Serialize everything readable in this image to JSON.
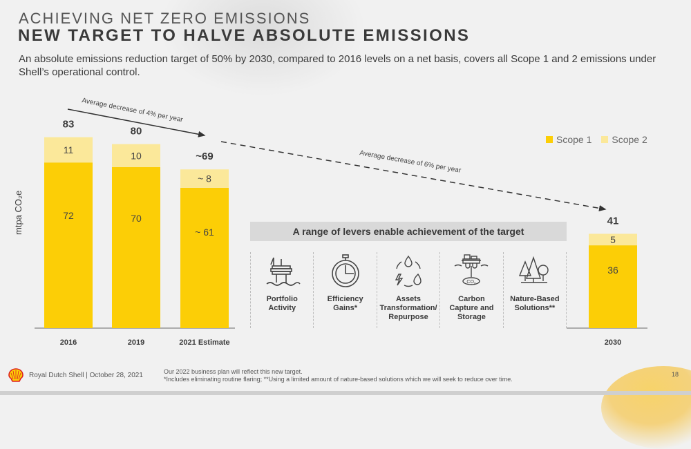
{
  "header": {
    "eyebrow": "ACHIEVING NET ZERO EMISSIONS",
    "title": "NEW TARGET TO HALVE ABSOLUTE EMISSIONS",
    "subtitle": "An absolute emissions reduction target of 50% by 2030, compared to 2016 levels on a net basis, covers all Scope 1 and 2 emissions under Shell’s operational control."
  },
  "colors": {
    "scope1": "#fcce06",
    "scope2": "#fbe89a",
    "text": "#3a3a3a"
  },
  "chart_data": {
    "type": "bar",
    "stacked": true,
    "title": "NEW TARGET TO HALVE ABSOLUTE EMISSIONS",
    "xlabel": "",
    "ylabel": "mtpa CO₂e",
    "ylim": [
      0,
      90
    ],
    "grid": false,
    "legend_position": "top-right",
    "categories": [
      "2016",
      "2019",
      "2021 Estimate",
      "2030"
    ],
    "series": [
      {
        "name": "Scope 1",
        "values": [
          72,
          70,
          61,
          36
        ],
        "labels": [
          "72",
          "70",
          "~ 61",
          "36"
        ]
      },
      {
        "name": "Scope 2",
        "values": [
          11,
          10,
          8,
          5
        ],
        "labels": [
          "11",
          "10",
          "~ 8",
          "5"
        ]
      }
    ],
    "totals": [
      83,
      80,
      69,
      41
    ],
    "total_labels": [
      "83",
      "80",
      "~69",
      "41"
    ],
    "annotations": [
      {
        "text": "Average decrease of 4% per year",
        "from": "2016",
        "to": "2021 Estimate",
        "style": "solid-arrow"
      },
      {
        "text": "Average decrease of 6% per year",
        "from": "2021 Estimate",
        "to": "2030",
        "style": "dashed-arrow"
      }
    ]
  },
  "levers": {
    "title": "A range of levers enable achievement of the target",
    "items": [
      {
        "icon": "offshore-platform-icon",
        "label": "Portfolio\nActivity"
      },
      {
        "icon": "stopwatch-icon",
        "label": "Efficiency\nGains*"
      },
      {
        "icon": "energy-cycle-icon",
        "label": "Assets\nTransformation/\nRepurpose"
      },
      {
        "icon": "carbon-capture-icon",
        "label": "Carbon\nCapture and\nStorage",
        "icon_text": "CO₂"
      },
      {
        "icon": "trees-icon",
        "label": "Nature-Based\nSolutions**"
      }
    ]
  },
  "footer": {
    "company": "Royal Dutch Shell | October 28, 2021",
    "note1": "Our 2022 business plan will reflect this new target.",
    "note2": "*Includes eliminating routine flaring; **Using a limited amount of nature-based solutions which we will seek to reduce over time.",
    "page": "18"
  }
}
